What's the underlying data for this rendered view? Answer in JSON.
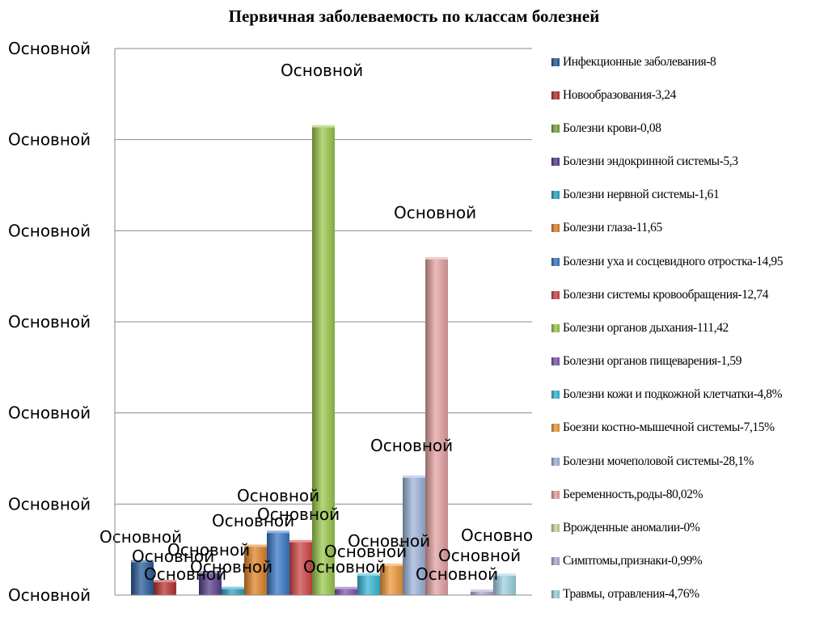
{
  "chart_data": {
    "type": "bar",
    "title": "Первичная заболеваемость по классам болезней",
    "ylim": [
      0,
      130
    ],
    "y_tick_labels": [
      "Основной",
      "Основной",
      "Основной",
      "Основной",
      "Основной",
      "Основной",
      "Основной"
    ],
    "data_label_text": "Основной",
    "grid": true,
    "legend_position": "right",
    "series": [
      {
        "name": "Инфекционные заболевания-8",
        "value": 8,
        "color": "#2a5d9c"
      },
      {
        "name": "Новообразования-3,24",
        "value": 3.24,
        "color": "#b83332"
      },
      {
        "name": "Болезни крови-0,08",
        "value": 0.08,
        "color": "#7da73b"
      },
      {
        "name": "Болезни эндокринной системы-5,3",
        "value": 5.3,
        "color": "#5a3f8c"
      },
      {
        "name": "Болезни нервной системы-1,61",
        "value": 1.61,
        "color": "#2ea6c7"
      },
      {
        "name": "Болезни глаза-11,65",
        "value": 11.65,
        "color": "#e0842a"
      },
      {
        "name": "Болезни уха и сосцевидного отростка-14,95",
        "value": 14.95,
        "color": "#3a79c8"
      },
      {
        "name": "Болезни системы кровообращения-12,74",
        "value": 12.74,
        "color": "#d04848"
      },
      {
        "name": "Болезни органов дыхания-111,42",
        "value": 111.42,
        "color": "#9bc94e"
      },
      {
        "name": "Болезни органов пищеварения-1,59",
        "value": 1.59,
        "color": "#8058b3"
      },
      {
        "name": "Болезни кожи и подкожной клетчатки-4,8%",
        "value": 4.8,
        "color": "#3bbad9"
      },
      {
        "name": "Боезни костно-мышечной системы-7,15%",
        "value": 7.15,
        "color": "#f09a3a"
      },
      {
        "name": "Болезни мочеполовой системы-28,1%",
        "value": 28.1,
        "color": "#9fb6dc"
      },
      {
        "name": "Беременность,роды-80,02%",
        "value": 80.02,
        "color": "#e6a3a3"
      },
      {
        "name": "Врожденные аномалии-0%",
        "value": 0,
        "color": "#c6dc9e"
      },
      {
        "name": "Симптомы,признаки-0,99%",
        "value": 0.99,
        "color": "#b9a9d3"
      },
      {
        "name": "Травмы, отравления-4,76%",
        "value": 4.76,
        "color": "#9fd2e3"
      }
    ]
  }
}
